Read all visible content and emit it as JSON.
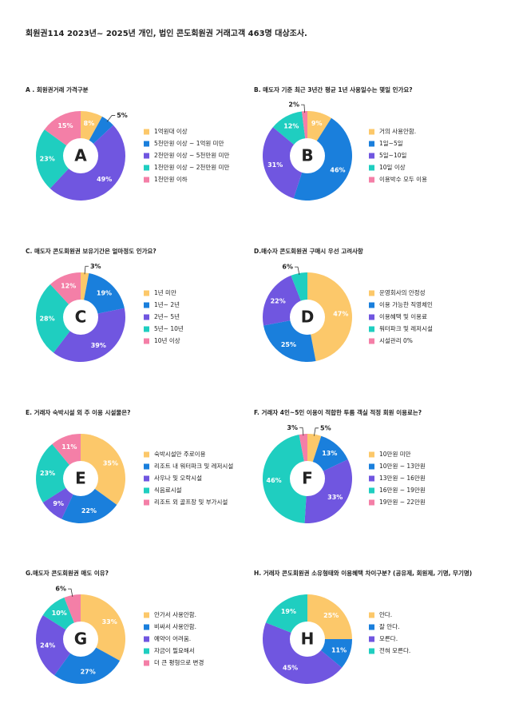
{
  "title": "회원권114 2023년~ 2025년 개인, 법인 콘도회원권 거래고객 463명 대상조사.",
  "chart_data": [
    {
      "type": "pie",
      "title": "A . 회원권거래 가격구분",
      "center_label": "A",
      "categories": [
        "1억원대 이상",
        "5천만원 이상 ~ 1억원 미만",
        "2천만원 이상 ~ 5천만원 미만",
        "1천만원 이상 ~ 2천만원 미만",
        "1천만원 이하"
      ],
      "values": [
        8,
        5,
        49,
        23,
        15
      ],
      "value_labels": [
        "8%",
        "5%",
        "49%",
        "23%",
        "15%"
      ],
      "colors": [
        "#fcc86a",
        "#1a7fdc",
        "#7056e0",
        "#1fcec0",
        "#f47fa7"
      ]
    },
    {
      "type": "pie",
      "title": "B. 매도자 기준 최근 3년간 평균 1년 사용일수는 몇일 인가요?",
      "center_label": "B",
      "categories": [
        "거의 사용안함.",
        "1일~5일",
        "5일~10일",
        "10일 이상",
        "이용박수 모두 이용"
      ],
      "values": [
        9,
        46,
        31,
        12,
        2
      ],
      "value_labels": [
        "9%",
        "46%",
        "31%",
        "12%",
        "2%"
      ],
      "colors": [
        "#fcc86a",
        "#1a7fdc",
        "#7056e0",
        "#1fcec0",
        "#f47fa7"
      ]
    },
    {
      "type": "pie",
      "title": "C. 매도자 콘도회원권 보유기간은 얼마정도 인가요?",
      "center_label": "C",
      "categories": [
        "1년 미만",
        "1년~ 2년",
        "2년~ 5년",
        "5년~ 10년",
        "10년 이상"
      ],
      "values": [
        3,
        19,
        39,
        28,
        12
      ],
      "value_labels": [
        "3%",
        "19%",
        "39%",
        "28%",
        "12%"
      ],
      "colors": [
        "#fcc86a",
        "#1a7fdc",
        "#7056e0",
        "#1fcec0",
        "#f47fa7"
      ]
    },
    {
      "type": "pie",
      "title": "D.매수자 콘도회원권 구매시 우선 고려사항",
      "center_label": "D",
      "categories": [
        "운영회사의 안정성",
        "이용 가능한 직영체인",
        "이용혜택 및 이용료",
        "워터파크 및 레저시설",
        "시설관리 0%"
      ],
      "values": [
        47,
        25,
        22,
        6,
        0
      ],
      "value_labels": [
        "47%",
        "25%",
        "22%",
        "6%",
        null
      ],
      "colors": [
        "#fcc86a",
        "#1a7fdc",
        "#7056e0",
        "#1fcec0",
        "#f47fa7"
      ]
    },
    {
      "type": "pie",
      "title": "E. 거래자 숙박시설 외 주 이용 시설물은?",
      "center_label": "E",
      "categories": [
        "숙박시설만 주로이용",
        "리조트 내 워터파크 및 레저시설",
        "사우나 및 오락시설",
        "식음료시설",
        "리조트 외 골프장 및 부가시설"
      ],
      "values": [
        35,
        22,
        9,
        23,
        11
      ],
      "value_labels": [
        "35%",
        "22%",
        "9%",
        "23%",
        "11%"
      ],
      "colors": [
        "#fcc86a",
        "#1a7fdc",
        "#7056e0",
        "#1fcec0",
        "#f47fa7"
      ]
    },
    {
      "type": "pie",
      "title": "F. 거래자 4인~5인 이용이 적합한 투룸 객실 적정 회원 이용료는?",
      "center_label": "F",
      "categories": [
        "10만원 미만",
        "10만원 ~ 13만원",
        "13만원 ~ 16만원",
        "16만원 ~ 19만원",
        "19만원 ~ 22만원"
      ],
      "values": [
        5,
        13,
        33,
        46,
        3
      ],
      "value_labels": [
        "5%",
        "13%",
        "33%",
        "46%",
        "3%"
      ],
      "colors": [
        "#fcc86a",
        "#1a7fdc",
        "#7056e0",
        "#1fcec0",
        "#f47fa7"
      ]
    },
    {
      "type": "pie",
      "title": "G.매도자 콘도회원권 매도 이유?",
      "center_label": "G",
      "categories": [
        "안가서 사용안함.",
        "비싸서 사용안함.",
        "예약이 어려움.",
        "자금이 필요해서",
        "더 큰 평형으로 변경"
      ],
      "values": [
        33,
        27,
        24,
        10,
        6
      ],
      "value_labels": [
        "33%",
        "27%",
        "24%",
        "10%",
        "6%"
      ],
      "colors": [
        "#fcc86a",
        "#1a7fdc",
        "#7056e0",
        "#1fcec0",
        "#f47fa7"
      ]
    },
    {
      "type": "pie",
      "title": "H. 거래자 콘도회원권 소유형태와 이용혜택 차이구분? (공유제, 회원제, 기명, 무기명)",
      "center_label": "H",
      "categories": [
        "안다.",
        "잘 안다.",
        "모른다.",
        "전혀 모른다."
      ],
      "values": [
        25,
        11,
        45,
        19
      ],
      "value_labels": [
        "25%",
        "11%",
        "45%",
        "19%"
      ],
      "colors": [
        "#fcc86a",
        "#1a7fdc",
        "#7056e0",
        "#1fcec0"
      ]
    }
  ]
}
